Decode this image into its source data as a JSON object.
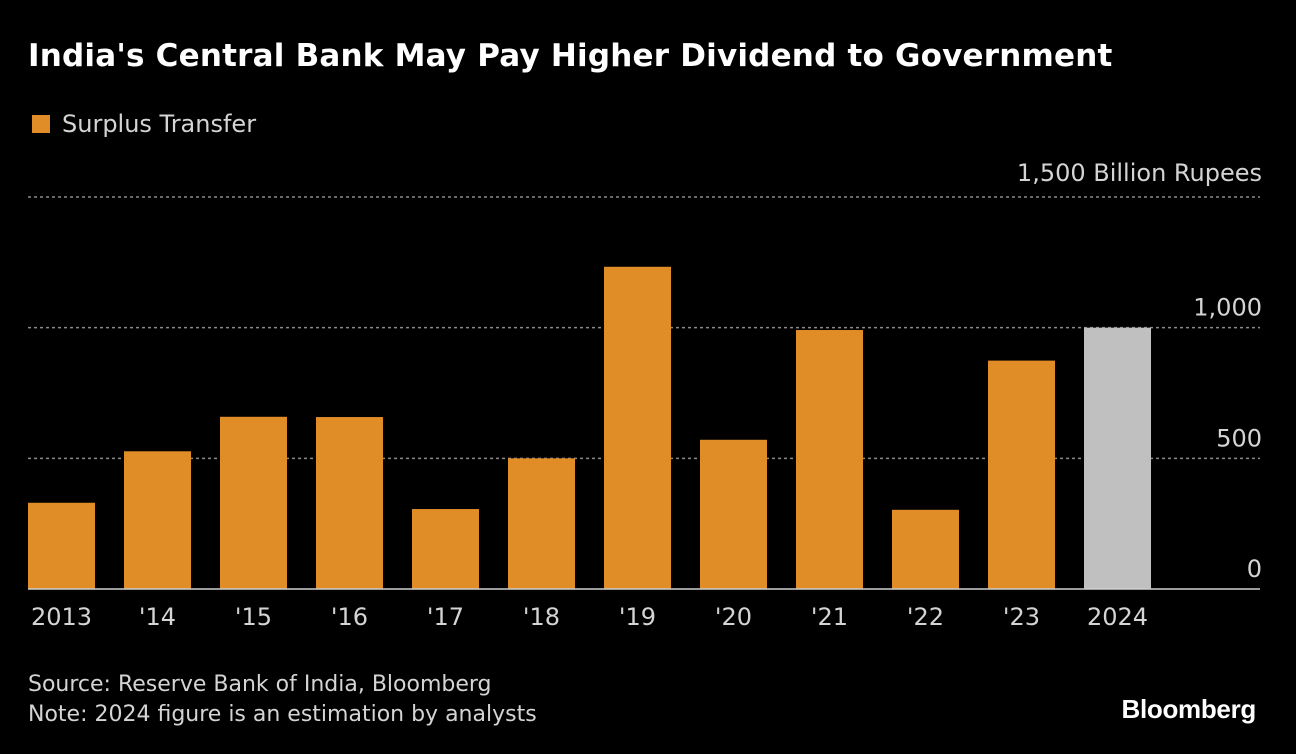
{
  "chart_data": {
    "type": "bar",
    "title": "India's Central Bank May Pay Higher Dividend to Government",
    "legend": [
      {
        "label": "Surplus Transfer",
        "color": "#e08c27"
      }
    ],
    "unit_label": "1,500 Billion Rupees",
    "categories": [
      "2013",
      "'14",
      "'15",
      "'16",
      "'17",
      "'18",
      "'19",
      "'20",
      "'21",
      "'22",
      "'23",
      "2024"
    ],
    "series": [
      {
        "name": "Surplus Transfer",
        "values": [
          330,
          527,
          659,
          658,
          306,
          500,
          1233,
          571,
          991,
          303,
          874,
          1000
        ],
        "colors": [
          "#e08c27",
          "#e08c27",
          "#e08c27",
          "#e08c27",
          "#e08c27",
          "#e08c27",
          "#e08c27",
          "#e08c27",
          "#e08c27",
          "#e08c27",
          "#e08c27",
          "#c0c0c0"
        ]
      }
    ],
    "ylim": [
      0,
      1500
    ],
    "yticks": [
      {
        "value": 0,
        "label": "0"
      },
      {
        "value": 500,
        "label": "500"
      },
      {
        "value": 1000,
        "label": "1,000"
      }
    ],
    "grid": true,
    "axis_position": "right"
  },
  "source": "Source: Reserve Bank of India, Bloomberg",
  "note": "Note: 2024 figure is an estimation by analysts",
  "brand": "Bloomberg",
  "colors": {
    "background": "#000000",
    "bar": "#e08c27",
    "estimate_bar": "#c0c0c0",
    "grid": "#8a8a8a",
    "text": "#d4d4d4"
  }
}
